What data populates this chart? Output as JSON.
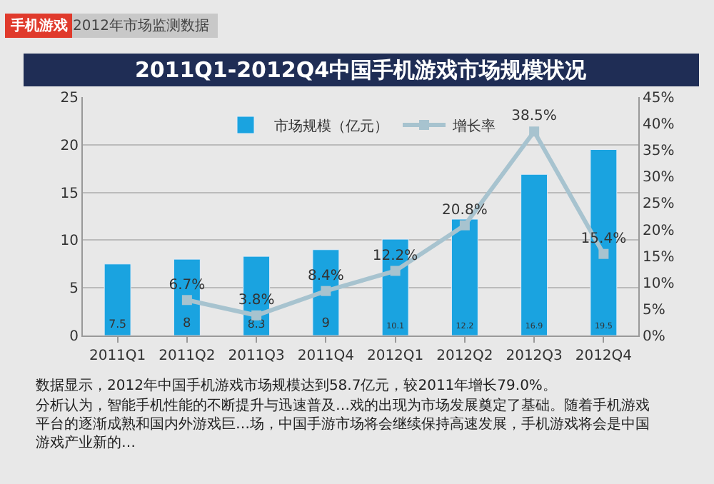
{
  "chart_data": {
    "type": "bar",
    "title": "2011Q1-2012Q4中国手机游戏市场规模状况",
    "subtitle": "2012年市场监测数据",
    "categories": [
      "2011Q1",
      "2011Q2",
      "2011Q3",
      "2011Q4",
      "2012Q1",
      "2012Q2",
      "2012Q3",
      "2012Q4"
    ],
    "series": [
      {
        "name": "市场规模（亿元）",
        "color": "#1aa3e0",
        "values": [
          7.5,
          8,
          8.3,
          9,
          10.1,
          12.2,
          16.9,
          19.5
        ]
      },
      {
        "name": "增长率",
        "type": "line",
        "axis": "y2",
        "color": "#a7c3cf",
        "marker": "square",
        "values": [
          null,
          6.7,
          3.8,
          8.4,
          12.2,
          20.8,
          38.5,
          15.4
        ],
        "value_labels": [
          null,
          "6.7%",
          "3.8%",
          "8.4%",
          "12.2%",
          "20.8%",
          "38.5%",
          "15.4%"
        ]
      }
    ],
    "data_labels": true,
    "ylim": [
      0,
      25
    ],
    "yticks": [
      0,
      5,
      10,
      15,
      20,
      25
    ],
    "y2lim": [
      0,
      45
    ],
    "y2ticks": [
      {
        "value": 0,
        "label": "0%"
      },
      {
        "value": 5,
        "label": "5%"
      },
      {
        "value": 10,
        "label": "10%"
      },
      {
        "value": 15,
        "label": "15%"
      },
      {
        "value": 20,
        "label": "20%"
      },
      {
        "value": 25,
        "label": "25%"
      },
      {
        "value": 30,
        "label": "30%"
      },
      {
        "value": 35,
        "label": "35%"
      },
      {
        "value": 40,
        "label": "40%"
      },
      {
        "value": 45,
        "label": "45%"
      }
    ],
    "grid": "y",
    "legend": "top",
    "annotations": [
      "手机游戏",
      "数据显示，2012年中国手机游戏市场规模达到58.7亿元，较2011年增长79.0%。",
      "分析认为，智能手机性能的不断提升与迅速普及…戏的出现为市场发展奠定了基础。随着手机游戏平台的逐渐成熟和国内外游戏巨…场，中国手游市场将会继续保持高速发展，手机游戏将会是中国游戏产业新的…"
    ]
  }
}
